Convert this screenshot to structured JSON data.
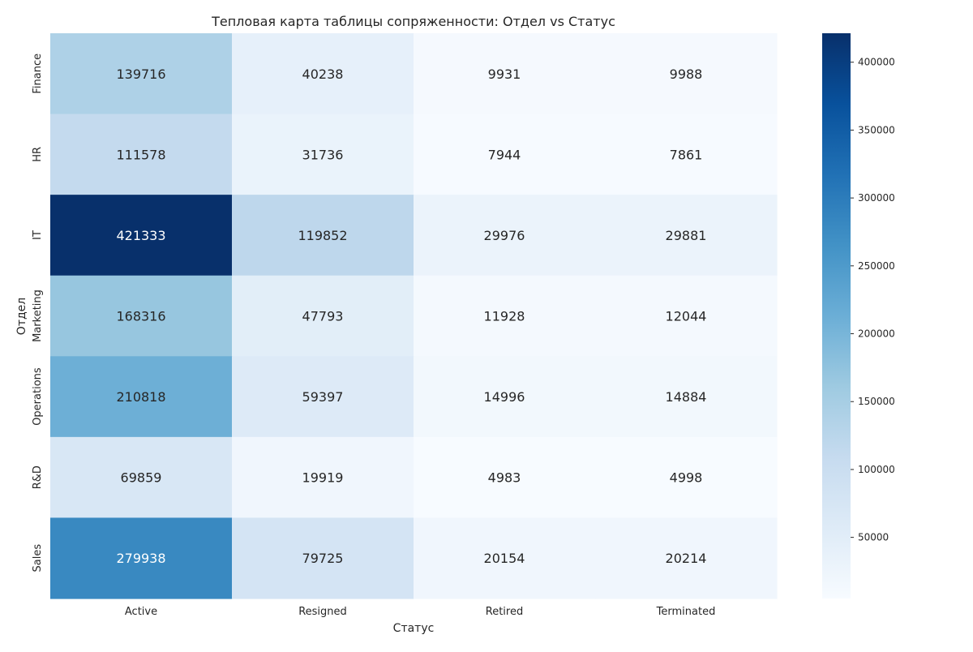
{
  "chart_data": {
    "type": "heatmap",
    "title": "Тепловая карта таблицы сопряженности: Отдел vs Статус",
    "xlabel": "Статус",
    "ylabel": "Отдел",
    "x_categories": [
      "Active",
      "Resigned",
      "Retired",
      "Terminated"
    ],
    "y_categories": [
      "Finance",
      "HR",
      "IT",
      "Marketing",
      "Operations",
      "R&D",
      "Sales"
    ],
    "values": [
      [
        139716,
        40238,
        9931,
        9988
      ],
      [
        111578,
        31736,
        7944,
        7861
      ],
      [
        421333,
        119852,
        29976,
        29881
      ],
      [
        168316,
        47793,
        11928,
        12044
      ],
      [
        210818,
        59397,
        14996,
        14884
      ],
      [
        69859,
        19919,
        4983,
        4998
      ],
      [
        279938,
        79725,
        20154,
        20214
      ]
    ],
    "colormap": "Blues",
    "vmin": 4983,
    "vmax": 421333,
    "colorbar_ticks": [
      50000,
      100000,
      150000,
      200000,
      250000,
      300000,
      350000,
      400000
    ],
    "annotations": true
  }
}
